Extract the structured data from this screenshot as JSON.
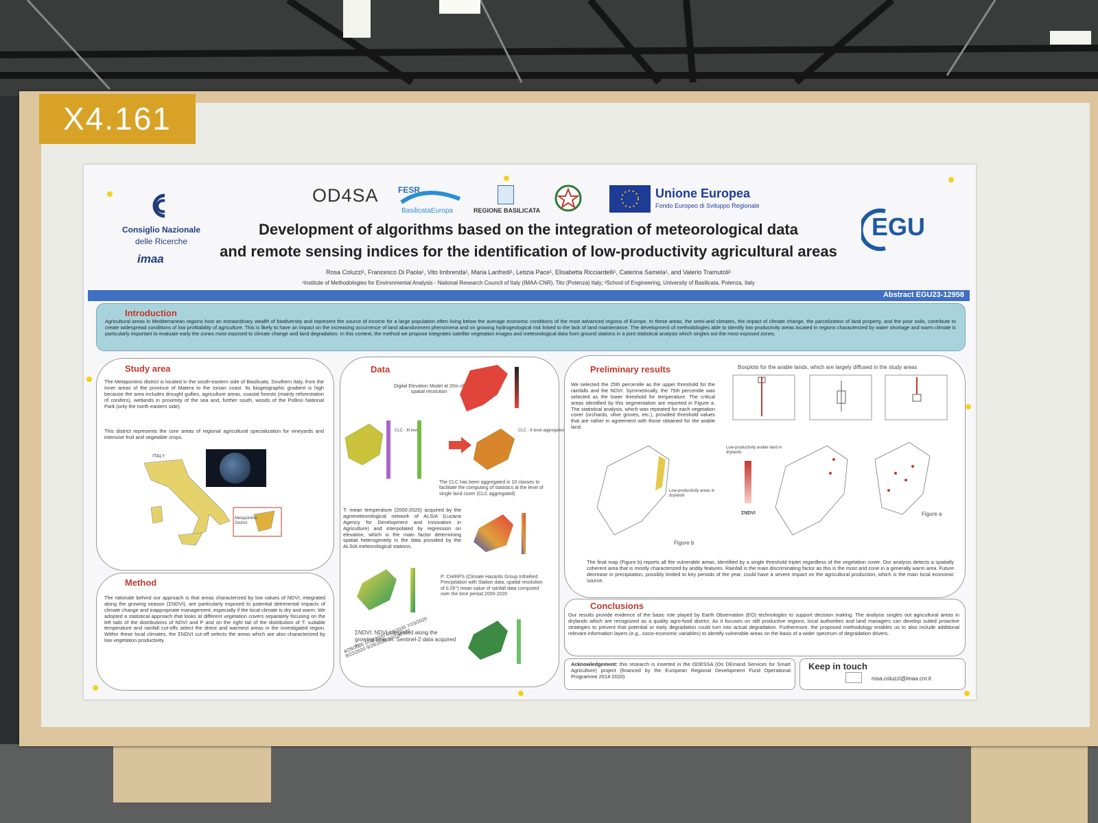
{
  "board_label": "X4.161",
  "header": {
    "cnr_line1": "Consiglio Nazionale",
    "cnr_line2": "delle Ricerche",
    "imaa": "imaa",
    "od4sa": "OD4SA",
    "fesr": "FESR",
    "basilicata_europa": "BasilicataEuropa",
    "regione": "REGIONE BASILICATA",
    "eu": "Unione Europea",
    "eu_fund": "Fondo Europeo di Sviluppo Regionale",
    "egu": "EGU",
    "title_line1": "Development of algorithms based on the integration of meteorological data",
    "title_line2": "and remote sensing indices for the identification of low-productivity agricultural areas",
    "authors": "Rosa Coluzzi¹, Francesco Di Paola¹, Vito Imbrenda¹, Maria Lanfredi¹, Letizia Pace¹, Elisabetta Ricciardelli¹, Caterina Samela¹, and Valerio Tramutoli²",
    "affiliations": "¹Institute of Methodologies for Environmental Analysis - National Research Council of Italy (IMAA-CNR), Tito (Potenza) Italy; ²School of Engineering, University of Basilicata, Potenza, Italy",
    "abstract_id": "Abstract EGU23-12958"
  },
  "sections": {
    "introduction": {
      "heading": "Introduction",
      "text": "Agricultural areas in Mediterranean regions host an extraordinary wealth of biodiversity and represent the source of income for a large population often living below the average economic conditions of the most advanced regions of Europe. In these areas, the semi-arid climates, the impact of climate change, the parcelization of land property, and the poor soils, contribute to create widespread conditions of low profitability of agriculture. This is likely to have an impact on the increasing occurrence of land abandonment phenomena and on growing hydrogeological risk linked to the lack of land maintenance. The development of methodologies able to identify low productivity areas located in regions characterized by water shortage and warm climate is particularly important to evaluate early the zones most exposed to climate change and land degradation. In this context, the method we propose integrates satellite vegetation images and meteorological data from ground stations in a joint statistical analysis which singles out the most exposed zones."
    },
    "study_area": {
      "heading": "Study area",
      "text1": "The Metapontino district is located in the south-eastern side of Basilicata, Southern Italy, from the inner areas of the province of Matera to the Ionian coast. Its biogeographic gradient is high because the area includes drought gullies, agriculture areas, coastal forests (mainly reforestation of conifers), wetlands in proximity of the sea and, further south, woods of the Pollino National Park (only the north-eastern side).",
      "text2": "This district represents the core areas of regional agricultural specialization for vineyards and intensive fruit and vegetable crops.",
      "map_label": "ITALY",
      "inset_label": "Metapontino District"
    },
    "method": {
      "heading": "Method",
      "text": "The rationale behind our approach is that areas characterized by low values of NDVI, integrated along the growing season (ΣNDVI), are particularly exposed to potential detrimental impacts of climate change and inappropriate management, especially if the local climate is dry and warm. We adopted a statistical approach that looks at different vegetation covers separately focusing on the left tails of the distributions of NDVI and P and on the right tail of the distribution of T: suitable temperature and rainfall cut-offs select the driest and warmest areas in the investigated region. Within these local climates, the ΣNDVI cut-off selects the areas which are also characterized by low vegetation productivity."
    },
    "data": {
      "heading": "Data",
      "dem_caption": "Digital Elevation Model at 20m of spatial resolution",
      "clc3_label": "CLC - III level",
      "clc2_label": "CLC - II level aggregated",
      "clc_caption": "The CLC has been aggregated in 10 classes to facilitate the computing of statistics at the level of single land cover (CLC aggregated)",
      "t_text": "T: mean temperature (2000-2020) acquired by the agrometeorological network of ALSIA (Lucana Agency for Development and Innovation in Agriculture) and interpolated by regression on elevation, which is the main factor determining spatial heterogeneity in the data provided by the ALSIA meteorological stations.",
      "p_text": "P: CHIRPS (Climate Hazards Group InfraRed Precipitation with Station data, spatial resolution of 0.05°) mean value of rainfall data computed over the time period 2000-2020",
      "ndvi_caption": "ΣNDVI: NDVI integrated along the growing season. Sentinel-2 data acquired in:",
      "dates": [
        "4/28/2020",
        "5/28/2020",
        "6/13/2020",
        "7/23/2020",
        "8/22/2020",
        "9/26/2020",
        "10/21/2020"
      ]
    },
    "preliminary_results": {
      "heading": "Preliminary results",
      "boxplot_caption": "Boxplots for the arable lands, which are largely diffused in the study areas",
      "text": "We selected the 25th percentile as the upper threshold for the rainfalls and the NDVI. Symmetrically, the 75th percentile was selected as the lower threshold for temperature. The critical areas identified by this segmentation are reported in Figure a. The statistical analysis, which was repeated for each vegetation cover (orchards, olive groves, etc.), provided threshold values that are rather in agreement with those obtained for the arable land.",
      "map_a_caption": "Low-productivity arable land in drylands",
      "map_b_caption": "Low-productivity areas in drylands",
      "ndvi_label": "ΣNDVI",
      "figure_a": "Figure a",
      "figure_b": "Figure b",
      "final_text": "The final map (Figure b) reports all the vulnerable areas, identified by a single threshold triplet regardless of the vegetation cover. Our analysis detects a spatially coherent area that is mostly characterized by aridity features. Rainfall is the main discriminating factor as this is the most arid zone in a generally warm area. Future decrease in precipitation, possibly limited to key periods of the year, could have a severe impact on the agricultural production, which is the main local economic source."
    },
    "conclusions": {
      "heading": "Conclusions",
      "text": "Our results provide evidence of the basic role played by Earth Observation (EO) technologies to support decision making. The analysis singles out agricultural areas in drylands which are recognized as a quality agro-food district. As it focuses on still productive regions, local authorities and land managers can develop suited proactive strategies to prevent that potential or early degradation could turn into actual degradation. Furthermore, the proposed methodology enables us to also include additional relevant information layers (e.g., socio-economic variables) to identify vulnerable areas on the basis of a wider spectrum of degradation drivers."
    },
    "acknowledgement": {
      "label": "Acknowledgement:",
      "text": "this research is inserted in the ODESSA (On DEmand Services for Smart Agriculture) project (financed by the European Regional Development Fund Operational Programme 2014-2020)"
    },
    "keep_in_touch": {
      "heading": "Keep in touch",
      "email": "rosa.coluzzi@imaa.cnr.it"
    }
  }
}
